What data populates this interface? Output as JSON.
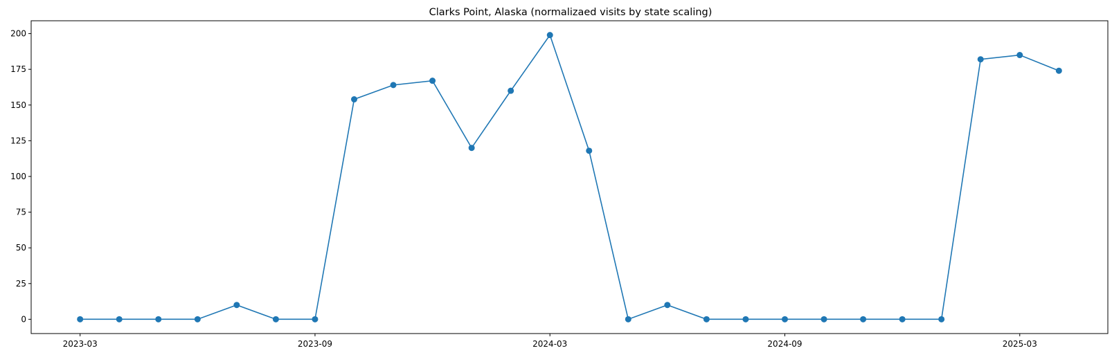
{
  "chart_data": {
    "type": "line",
    "title": "Clarks Point, Alaska (normalizaed visits by state scaling)",
    "xlabel": "",
    "ylabel": "",
    "x": [
      "2023-03",
      "2023-04",
      "2023-05",
      "2023-06",
      "2023-07",
      "2023-08",
      "2023-09",
      "2023-10",
      "2023-11",
      "2023-12",
      "2024-01",
      "2024-02",
      "2024-03",
      "2024-04",
      "2024-05",
      "2024-06",
      "2024-07",
      "2024-08",
      "2024-09",
      "2024-10",
      "2024-11",
      "2024-12",
      "2025-01",
      "2025-02",
      "2025-03",
      "2025-04"
    ],
    "series": [
      {
        "values": [
          0,
          0,
          0,
          0,
          10,
          0,
          0,
          154,
          164,
          167,
          120,
          160,
          199,
          118,
          0,
          10,
          0,
          0,
          0,
          0,
          0,
          0,
          0,
          182,
          185,
          174
        ]
      }
    ],
    "xticks": [
      "2023-03",
      "2023-09",
      "2024-03",
      "2024-09",
      "2025-03"
    ],
    "yticks": [
      0,
      25,
      50,
      75,
      100,
      125,
      150,
      175,
      200
    ],
    "ylim": [
      -10,
      209
    ],
    "grid": false,
    "color": "#1f77b4"
  }
}
